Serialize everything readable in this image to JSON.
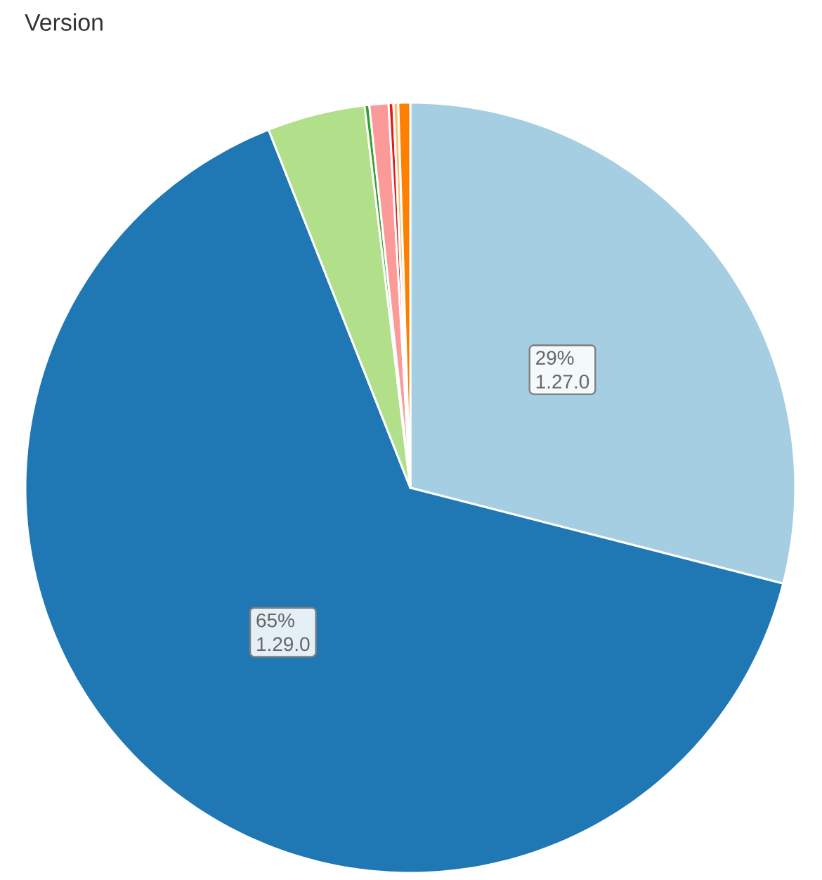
{
  "chart_data": {
    "type": "pie",
    "title": "Version",
    "categories": [
      "1.27.0",
      "1.29.0",
      null,
      null,
      null,
      null,
      null,
      null
    ],
    "values": [
      29,
      65,
      4.1,
      0.2,
      0.8,
      0.2,
      0.2,
      0.5
    ],
    "colors": [
      "#a6cee3",
      "#1f78b4",
      "#b2df8a",
      "#33a02c",
      "#fb9a99",
      "#e31a1c",
      "#fdbf6f",
      "#ff7f00"
    ],
    "value_labels": [
      "29%",
      "65%",
      null,
      null,
      null,
      null,
      null,
      null
    ]
  }
}
